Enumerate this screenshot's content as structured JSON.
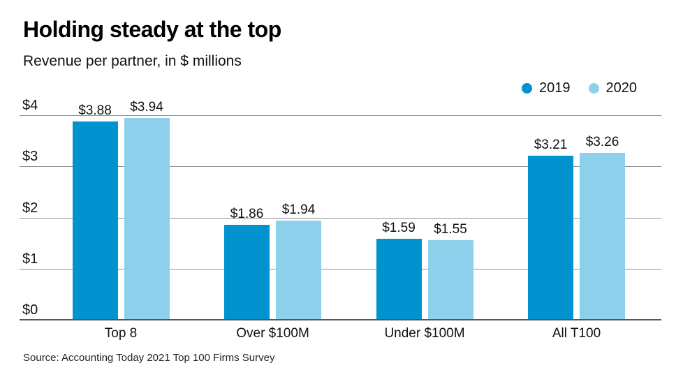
{
  "header": {
    "title": "Holding steady at the top",
    "subtitle": "Revenue per partner, in $ millions"
  },
  "legend": {
    "items": [
      {
        "label": "2019",
        "color": "#0093d0"
      },
      {
        "label": "2020",
        "color": "#8dd0ec"
      }
    ]
  },
  "chart_data": {
    "type": "bar",
    "title": "Holding steady at the top",
    "subtitle": "Revenue per partner, in $ millions",
    "categories": [
      "Top 8",
      "Over $100M",
      "Under $100M",
      "All T100"
    ],
    "series": [
      {
        "name": "2019",
        "color": "#0093d0",
        "values": [
          3.88,
          1.86,
          1.59,
          3.21
        ]
      },
      {
        "name": "2020",
        "color": "#8dd0ec",
        "values": [
          3.94,
          1.94,
          1.55,
          3.26
        ]
      }
    ],
    "value_labels": [
      [
        "$3.88",
        "$1.86",
        "$1.59",
        "$3.21"
      ],
      [
        "$3.94",
        "$1.94",
        "$1.55",
        "$3.26"
      ]
    ],
    "xlabel": "",
    "ylabel": "",
    "ylim": [
      0,
      4
    ],
    "yticks": [
      {
        "value": 0,
        "label": "$0"
      },
      {
        "value": 1,
        "label": "$1"
      },
      {
        "value": 2,
        "label": "$2"
      },
      {
        "value": 3,
        "label": "$3"
      },
      {
        "value": 4,
        "label": "$4"
      }
    ],
    "grid": true,
    "legend_position": "top-right"
  },
  "footer": {
    "source": "Source: Accounting Today 2021 Top 100 Firms Survey"
  }
}
